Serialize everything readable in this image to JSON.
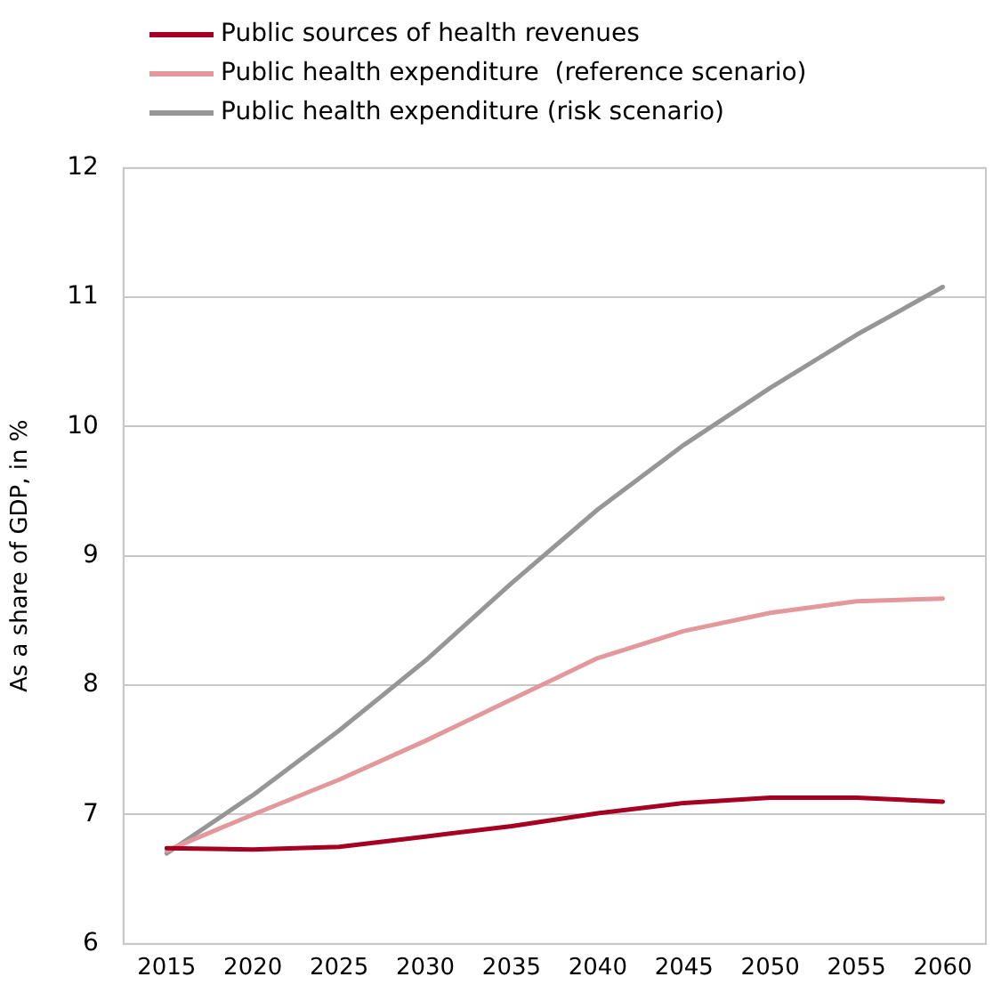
{
  "chart_data": {
    "type": "line",
    "ylabel": "As a share of GDP, in %",
    "categories": [
      "2015",
      "2020",
      "2025",
      "2030",
      "2035",
      "2040",
      "2045",
      "2050",
      "2055",
      "2060"
    ],
    "series": [
      {
        "name": "Public sources of health revenues",
        "color": "#a50021",
        "values": [
          6.74,
          6.73,
          6.75,
          6.83,
          6.91,
          7.01,
          7.09,
          7.13,
          7.13,
          7.1
        ]
      },
      {
        "name": "Public health expenditure  (reference scenario)",
        "color": "#e3999b",
        "values": [
          6.72,
          7.0,
          7.27,
          7.57,
          7.89,
          8.21,
          8.42,
          8.56,
          8.65,
          8.67
        ]
      },
      {
        "name": "Public health expenditure (risk scenario)",
        "color": "#969696",
        "values": [
          6.7,
          7.15,
          7.65,
          8.19,
          8.79,
          9.36,
          9.86,
          10.3,
          10.71,
          11.08
        ]
      }
    ],
    "ylim": [
      6,
      12
    ],
    "yticks": [
      6,
      7,
      8,
      9,
      10,
      11,
      12
    ],
    "grid": "y",
    "legend": "top",
    "marker": "none",
    "line_style": "solid"
  }
}
